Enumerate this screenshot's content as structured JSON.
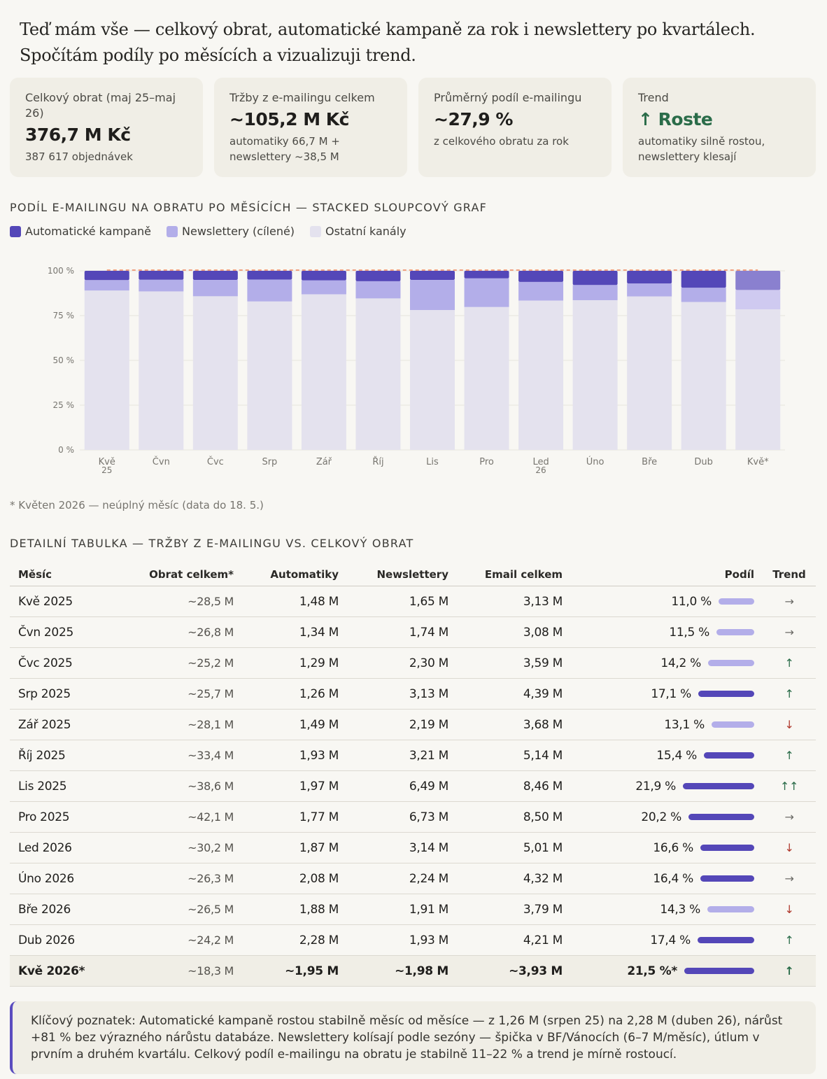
{
  "intro": {
    "line1": "Teď mám vše — celkový obrat, automatické kampaně za rok i newslettery po kvartálech.",
    "line2": "Spočítám podíly po měsících a vizualizuji trend."
  },
  "cards": [
    {
      "label": "Celkový obrat (maj 25–maj 26)",
      "value": "376,7 M Kč",
      "sub": "387 617 objednávek"
    },
    {
      "label": "Tržby z e-mailingu celkem",
      "value": "~105,2 M Kč",
      "sub": "automatiky 66,7 M + newslettery ~38,5 M"
    },
    {
      "label": "Průměrný podíl e-mailingu",
      "value": "~27,9 %",
      "sub": "z celkového obratu za rok"
    },
    {
      "label": "Trend",
      "value": "↑ Roste",
      "sub": "automatiky silně rostou, newslettery klesají"
    }
  ],
  "chart_section": {
    "title": "PODÍL E-MAILINGU NA OBRATU PO MĚSÍCÍCH — STACKED SLOUPCOVÝ GRAF",
    "note": "* Květen 2026 — neúplný měsíc (data do 18. 5.)"
  },
  "legend": [
    {
      "label": "Automatické kampaně",
      "color": "#5447b8"
    },
    {
      "label": "Newslettery (cílené)",
      "color": "#b3aee9"
    },
    {
      "label": "Ostatní kanály",
      "color": "#e4e2ee"
    }
  ],
  "chart_data": {
    "type": "bar",
    "stacked": true,
    "categories": [
      "Kvě 25",
      "Čvn",
      "Čvc",
      "Srp",
      "Zář",
      "Říj",
      "Lis",
      "Pro",
      "Led 26",
      "Úno",
      "Bře",
      "Dub",
      "Kvě*"
    ],
    "series": [
      {
        "name": "Ostatní kanály",
        "values": [
          89,
          88.5,
          85.8,
          82.9,
          86.9,
          84.6,
          78.1,
          79.8,
          83.4,
          83.6,
          85.7,
          82.6,
          78.5
        ]
      },
      {
        "name": "Newslettery (cílené)",
        "values": [
          5.8,
          6.5,
          9.1,
          12.2,
          7.8,
          9.6,
          16.8,
          16.0,
          10.4,
          8.5,
          7.2,
          8.0,
          10.8
        ]
      },
      {
        "name": "Automatické kampaně",
        "values": [
          5.2,
          5.0,
          5.1,
          4.9,
          5.3,
          5.8,
          5.1,
          4.2,
          6.2,
          7.9,
          7.1,
          9.4,
          10.7
        ]
      }
    ],
    "yticks": [
      "0 %",
      "25 %",
      "50 %",
      "75 %",
      "100 %"
    ],
    "ylim": [
      0,
      100
    ],
    "grid": true,
    "trend_line": true,
    "highlight_last": true
  },
  "table": {
    "title": "DETAILNÍ TABULKA — TRŽBY Z E-MAILINGU VS. CELKOVÝ OBRAT",
    "headers": [
      "Měsíc",
      "Obrat celkem*",
      "Automatiky",
      "Newslettery",
      "Email celkem",
      "Podíl",
      "Trend"
    ],
    "rows": [
      {
        "month": "Kvě 2025",
        "total": "~28,5 M",
        "auto": "1,48 M",
        "news": "1,65 M",
        "email": "3,13 M",
        "share": "11,0 %",
        "share_val": 11.0,
        "trend": "→",
        "trend_color": "#6b6a66"
      },
      {
        "month": "Čvn 2025",
        "total": "~26,8 M",
        "auto": "1,34 M",
        "news": "1,74 M",
        "email": "3,08 M",
        "share": "11,5 %",
        "share_val": 11.5,
        "trend": "→",
        "trend_color": "#6b6a66"
      },
      {
        "month": "Čvc 2025",
        "total": "~25,2 M",
        "auto": "1,29 M",
        "news": "2,30 M",
        "email": "3,59 M",
        "share": "14,2 %",
        "share_val": 14.2,
        "trend": "↑",
        "trend_color": "#2a6c49"
      },
      {
        "month": "Srp 2025",
        "total": "~25,7 M",
        "auto": "1,26 M",
        "news": "3,13 M",
        "email": "4,39 M",
        "share": "17,1 %",
        "share_val": 17.1,
        "trend": "↑",
        "trend_color": "#2a6c49"
      },
      {
        "month": "Zář 2025",
        "total": "~28,1 M",
        "auto": "1,49 M",
        "news": "2,19 M",
        "email": "3,68 M",
        "share": "13,1 %",
        "share_val": 13.1,
        "trend": "↓",
        "trend_color": "#b03a2e"
      },
      {
        "month": "Říj 2025",
        "total": "~33,4 M",
        "auto": "1,93 M",
        "news": "3,21 M",
        "email": "5,14 M",
        "share": "15,4 %",
        "share_val": 15.4,
        "trend": "↑",
        "trend_color": "#2a6c49"
      },
      {
        "month": "Lis 2025",
        "total": "~38,6 M",
        "auto": "1,97 M",
        "news": "6,49 M",
        "email": "8,46 M",
        "share": "21,9 %",
        "share_val": 21.9,
        "trend": "↑↑",
        "trend_color": "#2a6c49"
      },
      {
        "month": "Pro 2025",
        "total": "~42,1 M",
        "auto": "1,77 M",
        "news": "6,73 M",
        "email": "8,50 M",
        "share": "20,2 %",
        "share_val": 20.2,
        "trend": "→",
        "trend_color": "#6b6a66"
      },
      {
        "month": "Led 2026",
        "total": "~30,2 M",
        "auto": "1,87 M",
        "news": "3,14 M",
        "email": "5,01 M",
        "share": "16,6 %",
        "share_val": 16.6,
        "trend": "↓",
        "trend_color": "#b03a2e"
      },
      {
        "month": "Úno 2026",
        "total": "~26,3 M",
        "auto": "2,08 M",
        "news": "2,24 M",
        "email": "4,32 M",
        "share": "16,4 %",
        "share_val": 16.4,
        "trend": "→",
        "trend_color": "#6b6a66"
      },
      {
        "month": "Bře 2026",
        "total": "~26,5 M",
        "auto": "1,88 M",
        "news": "1,91 M",
        "email": "3,79 M",
        "share": "14,3 %",
        "share_val": 14.3,
        "trend": "↓",
        "trend_color": "#b03a2e"
      },
      {
        "month": "Dub 2026",
        "total": "~24,2 M",
        "auto": "2,28 M",
        "news": "1,93 M",
        "email": "4,21 M",
        "share": "17,4 %",
        "share_val": 17.4,
        "trend": "↑",
        "trend_color": "#2a6c49"
      },
      {
        "month": "Kvě 2026*",
        "total": "~18,3 M",
        "auto": "~1,95 M",
        "news": "~1,98 M",
        "email": "~3,93 M",
        "share": "21,5 %*",
        "share_val": 21.5,
        "trend": "↑",
        "trend_color": "#2a6c49"
      }
    ]
  },
  "insight": "Klíčový poznatek: Automatické kampaně rostou stabilně měsíc od měsíce — z 1,26 M (srpen 25) na 2,28 M (duben 26), nárůst +81 % bez výrazného nárůstu databáze. Newslettery kolísají podle sezóny — špička v BF/Vánocích (6–7 M/měsíc), útlum v prvním a druhém kvartálu. Celkový podíl e-mailingu na obratu je stabilně 11–22 % a trend je mírně rostoucí.",
  "colors": {
    "accent": "#5447b8",
    "light_bar": "#b3aee9",
    "green": "#2a6c49",
    "red": "#b03a2e",
    "trend_line": "#f0a080"
  }
}
